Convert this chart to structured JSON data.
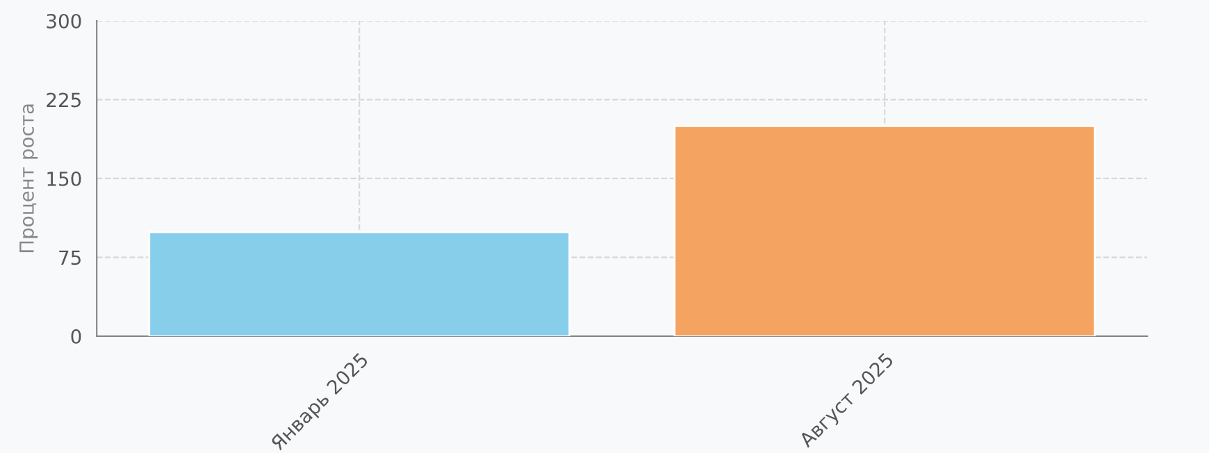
{
  "chart_data": {
    "type": "bar",
    "ylabel": "Процент роста",
    "categories": [
      "Январь 2025",
      "Август 2025"
    ],
    "values": [
      99,
      200
    ],
    "colors": [
      "#87ceeb",
      "#f4a460"
    ],
    "ylim": [
      0,
      300
    ],
    "yticks": [
      0,
      75,
      150,
      225,
      300
    ],
    "grid": true
  }
}
